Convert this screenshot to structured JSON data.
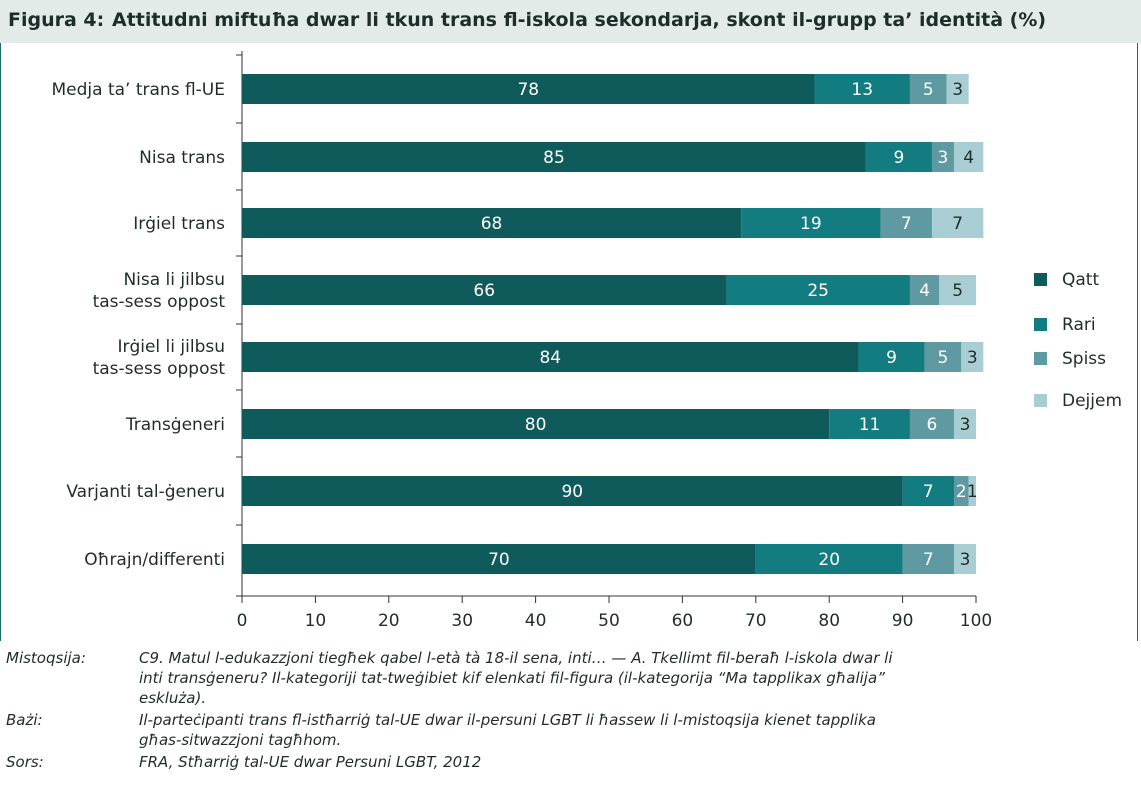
{
  "figure": {
    "label": "Figura 4:",
    "title": "Attitudni miftuħa dwar li tkun trans fl-iskola sekondarja, skont il-grupp ta’ identità (%)"
  },
  "chart_data": {
    "type": "bar",
    "orientation": "horizontal",
    "stacked": true,
    "categories": [
      "Medja ta’ trans fl-UE",
      "Nisa trans",
      "Irġiel trans",
      [
        "Nisa li jilbsu",
        "tas-sess oppost"
      ],
      [
        "Irġiel li jilbsu",
        "tas-sess oppost"
      ],
      "Transġeneri",
      "Varjanti tal-ġeneru",
      "Oħrajn/differenti"
    ],
    "series": [
      {
        "name": "Qatt",
        "color": "#0f5a5a",
        "values": [
          78,
          85,
          68,
          66,
          84,
          80,
          90,
          70
        ]
      },
      {
        "name": "Rari",
        "color": "#137c80",
        "values": [
          13,
          9,
          19,
          25,
          9,
          11,
          7,
          20
        ]
      },
      {
        "name": "Spiss",
        "color": "#5f9aa2",
        "values": [
          5,
          3,
          7,
          4,
          5,
          6,
          2,
          7
        ]
      },
      {
        "name": "Dejjem",
        "color": "#a8cdd3",
        "values": [
          3,
          4,
          7,
          5,
          3,
          3,
          1,
          3
        ]
      }
    ],
    "xlim": [
      0,
      100
    ],
    "xticks": [
      0,
      10,
      20,
      30,
      40,
      50,
      60,
      70,
      80,
      90,
      100
    ],
    "legend_position": "right",
    "grid": false
  },
  "notes": [
    {
      "key": "Mistoqsija:",
      "text": "C9. Matul l-edukazzjoni tiegħek qabel l-età tà 18-il sena, inti… — A. Tkellimt fil-beraħ l-iskola dwar li inti transġeneru? Il-kategoriji tat-tweġibiet kif elenkati fil-figura (il-kategorija “Ma tapplikax għalija” eskluża)."
    },
    {
      "key": "Bażi:",
      "text": "Il-parteċipanti trans fl-istħarriġ tal-UE dwar il-persuni LGBT li ħassew li l-mistoqsija kienet tapplika għas-sitwazzjoni tagħhom."
    },
    {
      "key": "Sors:",
      "text": "FRA, Stħarriġ tal-UE dwar Persuni LGBT, 2012"
    }
  ]
}
